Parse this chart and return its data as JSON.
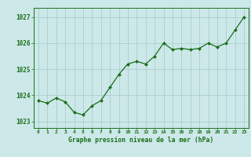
{
  "x": [
    0,
    1,
    2,
    3,
    4,
    5,
    6,
    7,
    8,
    9,
    10,
    11,
    12,
    13,
    14,
    15,
    16,
    17,
    18,
    19,
    20,
    21,
    22,
    23
  ],
  "y": [
    1023.8,
    1023.7,
    1023.9,
    1023.75,
    1023.35,
    1023.25,
    1023.6,
    1023.8,
    1024.3,
    1024.8,
    1025.2,
    1025.3,
    1025.2,
    1025.5,
    1026.0,
    1025.75,
    1025.8,
    1025.75,
    1025.8,
    1026.0,
    1025.85,
    1026.0,
    1026.5,
    1027.0
  ],
  "line_color": "#1a6e1a",
  "marker": "D",
  "marker_size": 2.0,
  "bg_color": "#cce8e8",
  "grid_color": "#aacece",
  "xlabel": "Graphe pression niveau de la mer (hPa)",
  "xlabel_color": "#1a6e1a",
  "tick_label_color": "#1a6e1a",
  "ylim": [
    1022.75,
    1027.35
  ],
  "yticks": [
    1023,
    1024,
    1025,
    1026,
    1027
  ],
  "xticks": [
    0,
    1,
    2,
    3,
    4,
    5,
    6,
    7,
    8,
    9,
    10,
    11,
    12,
    13,
    14,
    15,
    16,
    17,
    18,
    19,
    20,
    21,
    22,
    23
  ],
  "figsize": [
    3.2,
    2.0
  ],
  "dpi": 100
}
